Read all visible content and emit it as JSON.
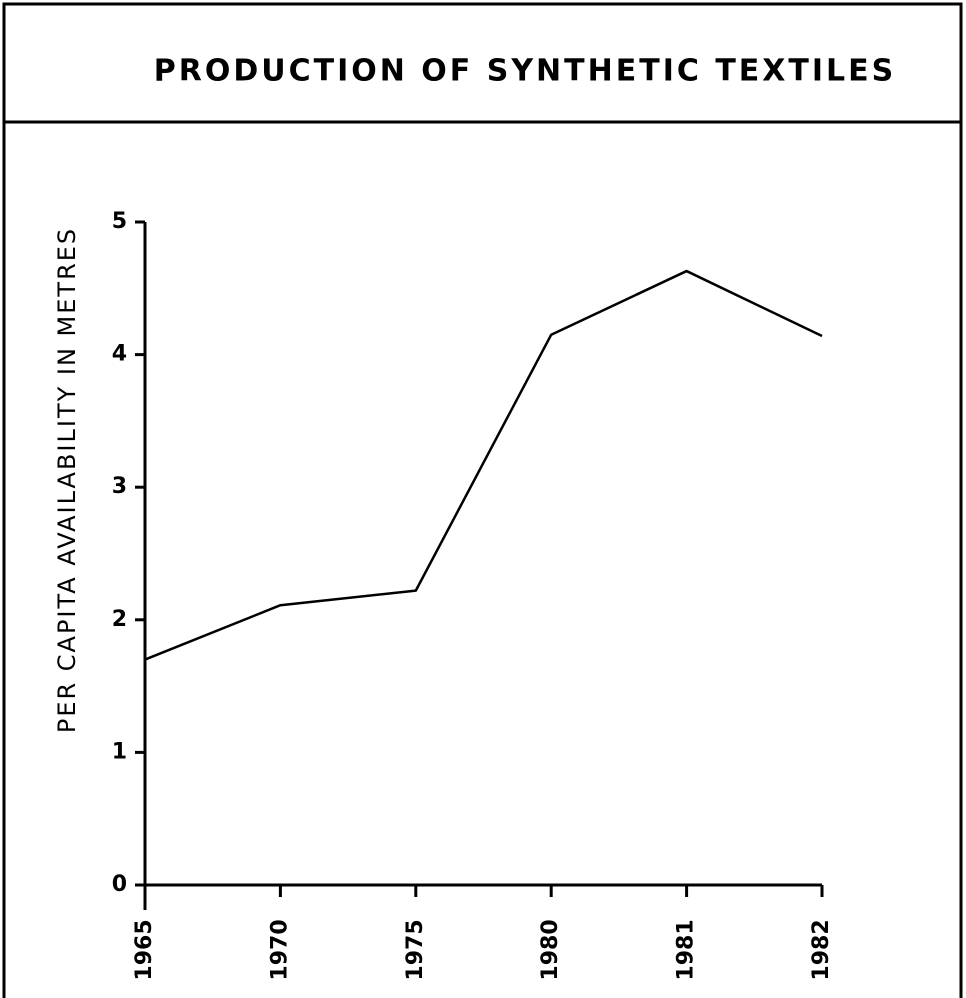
{
  "chart_data": {
    "type": "line",
    "title": "PRODUCTION OF SYNTHETIC TEXTILES",
    "y_label": "PER CAPITA AVAILABILITY IN METRES",
    "categories": [
      "1965",
      "1970",
      "1975",
      "1980",
      "1981",
      "1982"
    ],
    "series": [
      {
        "name": "Per capita availability",
        "color": "#000000",
        "values": [
          1.7,
          2.11,
          2.22,
          4.15,
          4.63,
          4.14
        ]
      }
    ],
    "ylim": [
      0,
      5
    ],
    "yticks": [
      0,
      1,
      2,
      3,
      4,
      5
    ],
    "grid": false
  }
}
